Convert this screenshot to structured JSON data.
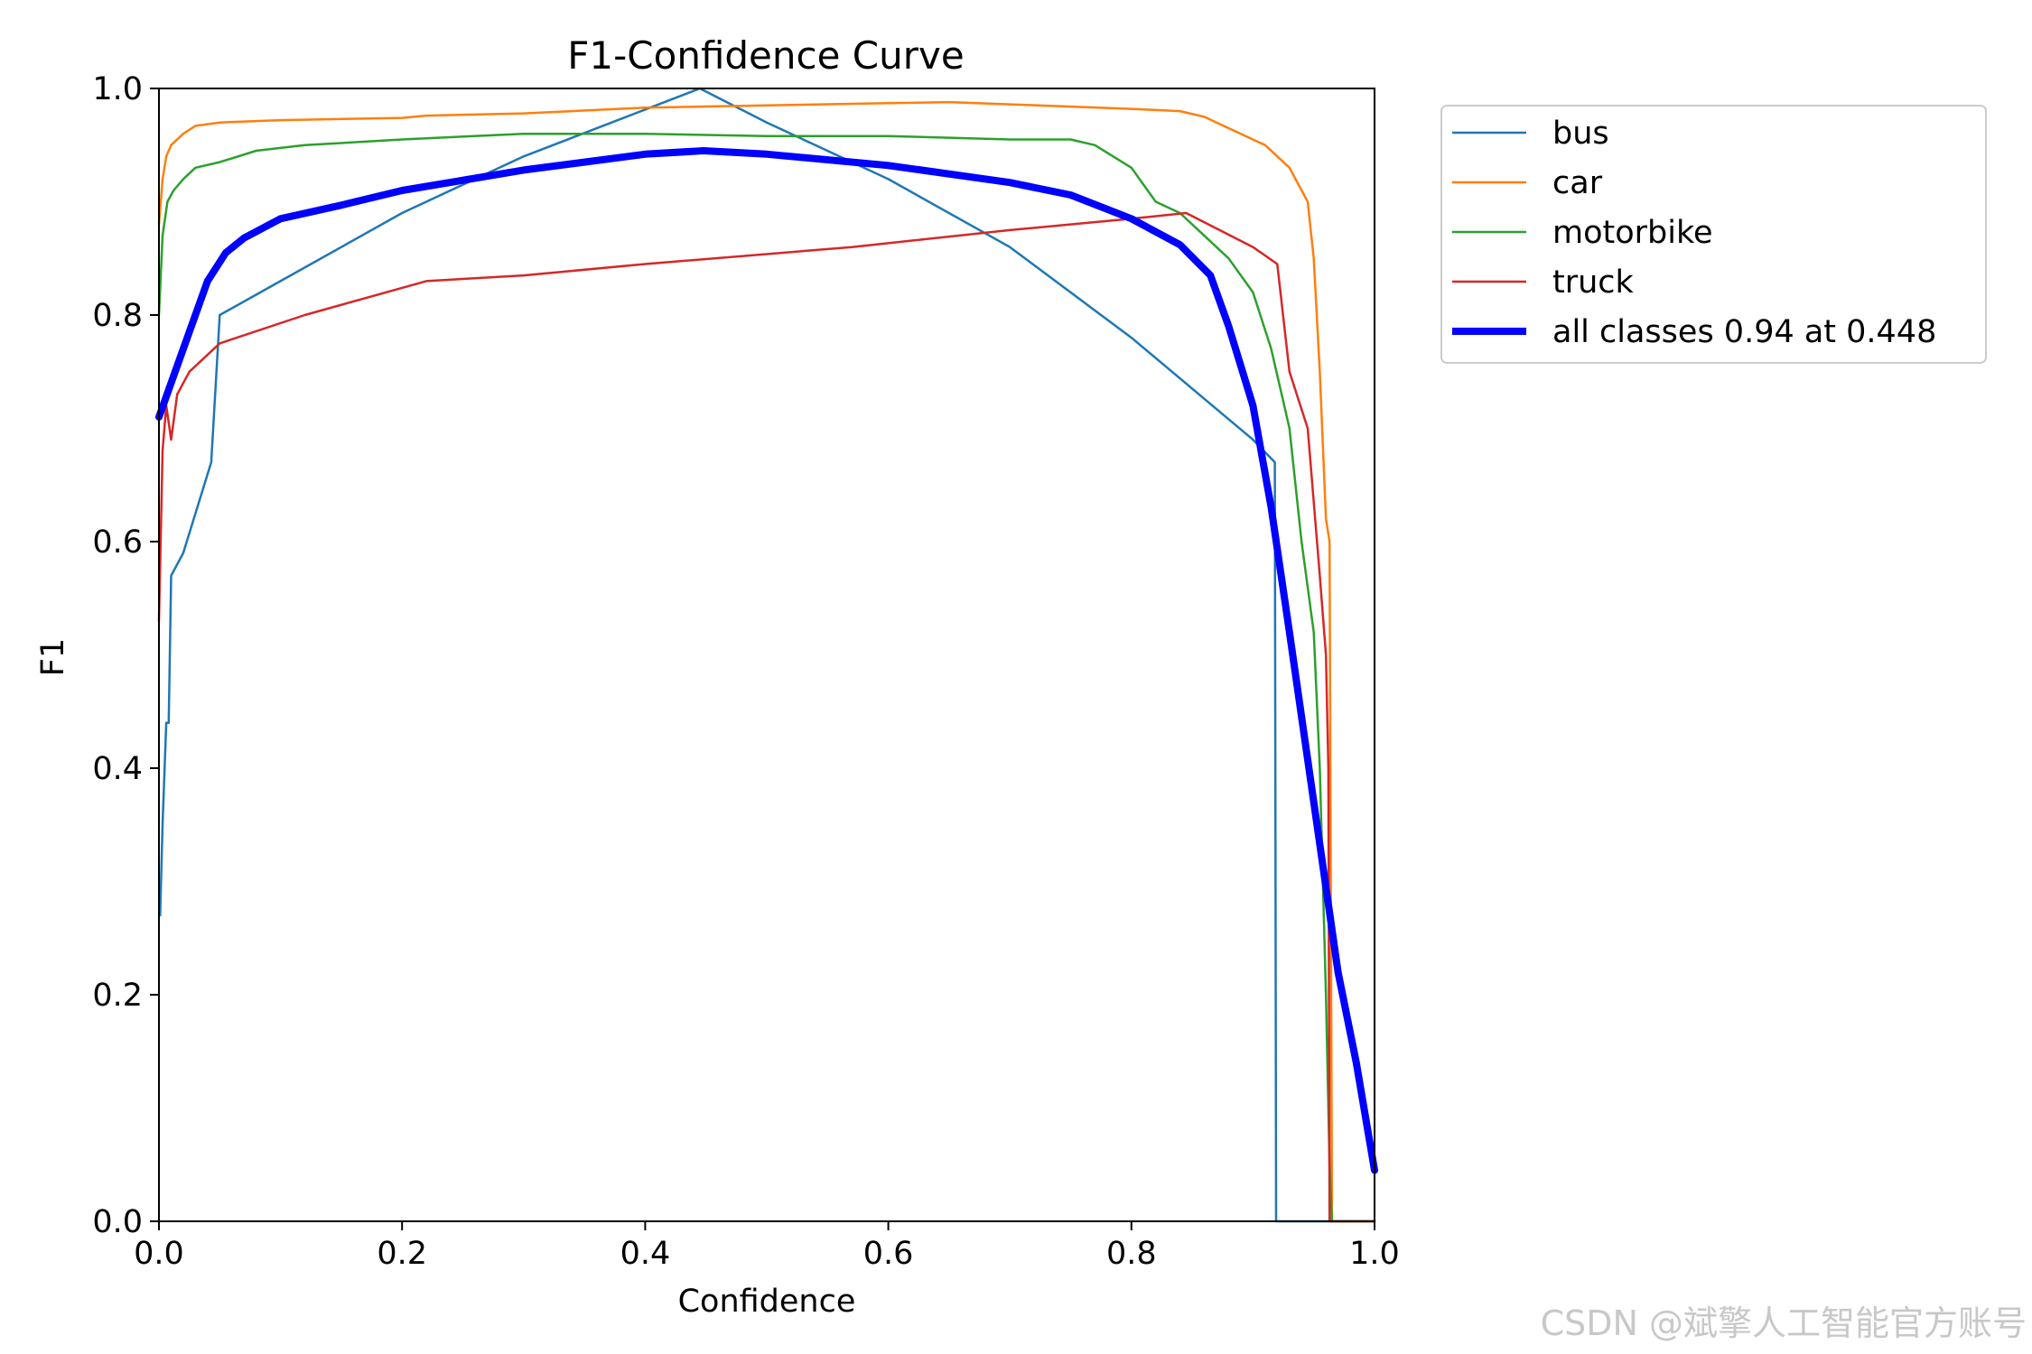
{
  "watermark": "CSDN @斌擎人工智能官方账号",
  "chart_data": {
    "type": "line",
    "title": "F1-Confidence Curve",
    "xlabel": "Confidence",
    "ylabel": "F1",
    "xlim": [
      0.0,
      1.0
    ],
    "ylim": [
      0.0,
      1.0
    ],
    "xticks": [
      "0.0",
      "0.2",
      "0.4",
      "0.6",
      "0.8",
      "1.0"
    ],
    "yticks": [
      "0.0",
      "0.2",
      "0.4",
      "0.6",
      "0.8",
      "1.0"
    ],
    "grid": false,
    "legend_position": "outside-upper-right",
    "series": [
      {
        "name": "bus",
        "color": "#1f77b4",
        "points": [
          [
            0.001,
            0.27
          ],
          [
            0.003,
            0.35
          ],
          [
            0.006,
            0.44
          ],
          [
            0.008,
            0.44
          ],
          [
            0.01,
            0.57
          ],
          [
            0.02,
            0.59
          ],
          [
            0.043,
            0.67
          ],
          [
            0.05,
            0.8
          ],
          [
            0.1,
            0.83
          ],
          [
            0.2,
            0.89
          ],
          [
            0.3,
            0.94
          ],
          [
            0.445,
            1.0
          ],
          [
            0.5,
            0.97
          ],
          [
            0.6,
            0.92
          ],
          [
            0.7,
            0.86
          ],
          [
            0.8,
            0.78
          ],
          [
            0.9,
            0.69
          ],
          [
            0.918,
            0.67
          ],
          [
            0.919,
            0.0
          ],
          [
            1.0,
            0.0
          ]
        ]
      },
      {
        "name": "car",
        "color": "#ff7f0e",
        "points": [
          [
            0.0,
            0.88
          ],
          [
            0.003,
            0.92
          ],
          [
            0.006,
            0.94
          ],
          [
            0.01,
            0.95
          ],
          [
            0.02,
            0.96
          ],
          [
            0.03,
            0.967
          ],
          [
            0.05,
            0.97
          ],
          [
            0.1,
            0.972
          ],
          [
            0.2,
            0.974
          ],
          [
            0.22,
            0.976
          ],
          [
            0.3,
            0.978
          ],
          [
            0.34,
            0.98
          ],
          [
            0.4,
            0.983
          ],
          [
            0.5,
            0.985
          ],
          [
            0.6,
            0.987
          ],
          [
            0.65,
            0.988
          ],
          [
            0.7,
            0.986
          ],
          [
            0.8,
            0.982
          ],
          [
            0.84,
            0.98
          ],
          [
            0.86,
            0.975
          ],
          [
            0.87,
            0.97
          ],
          [
            0.89,
            0.96
          ],
          [
            0.91,
            0.95
          ],
          [
            0.93,
            0.93
          ],
          [
            0.945,
            0.9
          ],
          [
            0.95,
            0.85
          ],
          [
            0.955,
            0.75
          ],
          [
            0.96,
            0.62
          ],
          [
            0.963,
            0.6
          ],
          [
            0.965,
            0.0
          ],
          [
            1.0,
            0.0
          ]
        ]
      },
      {
        "name": "motorbike",
        "color": "#2ca02c",
        "points": [
          [
            0.0,
            0.8
          ],
          [
            0.003,
            0.87
          ],
          [
            0.007,
            0.9
          ],
          [
            0.012,
            0.91
          ],
          [
            0.02,
            0.92
          ],
          [
            0.03,
            0.93
          ],
          [
            0.05,
            0.935
          ],
          [
            0.08,
            0.945
          ],
          [
            0.12,
            0.95
          ],
          [
            0.2,
            0.955
          ],
          [
            0.3,
            0.96
          ],
          [
            0.4,
            0.96
          ],
          [
            0.5,
            0.958
          ],
          [
            0.6,
            0.958
          ],
          [
            0.7,
            0.955
          ],
          [
            0.75,
            0.955
          ],
          [
            0.77,
            0.95
          ],
          [
            0.8,
            0.93
          ],
          [
            0.82,
            0.9
          ],
          [
            0.84,
            0.89
          ],
          [
            0.86,
            0.87
          ],
          [
            0.88,
            0.85
          ],
          [
            0.9,
            0.82
          ],
          [
            0.915,
            0.77
          ],
          [
            0.93,
            0.7
          ],
          [
            0.94,
            0.6
          ],
          [
            0.95,
            0.52
          ],
          [
            0.955,
            0.4
          ],
          [
            0.96,
            0.2
          ],
          [
            0.963,
            0.05
          ],
          [
            0.965,
            0.0
          ],
          [
            1.0,
            0.0
          ]
        ]
      },
      {
        "name": "truck",
        "color": "#d62728",
        "points": [
          [
            0.0,
            0.53
          ],
          [
            0.003,
            0.68
          ],
          [
            0.006,
            0.72
          ],
          [
            0.01,
            0.69
          ],
          [
            0.015,
            0.73
          ],
          [
            0.025,
            0.75
          ],
          [
            0.05,
            0.775
          ],
          [
            0.12,
            0.8
          ],
          [
            0.22,
            0.83
          ],
          [
            0.3,
            0.835
          ],
          [
            0.4,
            0.845
          ],
          [
            0.57,
            0.86
          ],
          [
            0.7,
            0.875
          ],
          [
            0.8,
            0.885
          ],
          [
            0.845,
            0.89
          ],
          [
            0.9,
            0.86
          ],
          [
            0.92,
            0.845
          ],
          [
            0.93,
            0.75
          ],
          [
            0.945,
            0.7
          ],
          [
            0.955,
            0.57
          ],
          [
            0.96,
            0.5
          ],
          [
            0.962,
            0.4
          ],
          [
            0.963,
            0.0
          ],
          [
            1.0,
            0.0
          ]
        ]
      },
      {
        "name": "all classes 0.94 at 0.448",
        "color": "#0000ff",
        "bold": true,
        "points": [
          [
            0.0,
            0.71
          ],
          [
            0.02,
            0.77
          ],
          [
            0.04,
            0.83
          ],
          [
            0.055,
            0.855
          ],
          [
            0.07,
            0.868
          ],
          [
            0.1,
            0.885
          ],
          [
            0.15,
            0.897
          ],
          [
            0.2,
            0.91
          ],
          [
            0.3,
            0.928
          ],
          [
            0.4,
            0.942
          ],
          [
            0.448,
            0.945
          ],
          [
            0.5,
            0.942
          ],
          [
            0.6,
            0.932
          ],
          [
            0.7,
            0.917
          ],
          [
            0.75,
            0.906
          ],
          [
            0.8,
            0.885
          ],
          [
            0.84,
            0.862
          ],
          [
            0.865,
            0.835
          ],
          [
            0.88,
            0.79
          ],
          [
            0.9,
            0.72
          ],
          [
            0.915,
            0.63
          ],
          [
            0.93,
            0.52
          ],
          [
            0.95,
            0.37
          ],
          [
            0.97,
            0.22
          ],
          [
            0.985,
            0.14
          ],
          [
            1.0,
            0.045
          ]
        ]
      }
    ]
  }
}
